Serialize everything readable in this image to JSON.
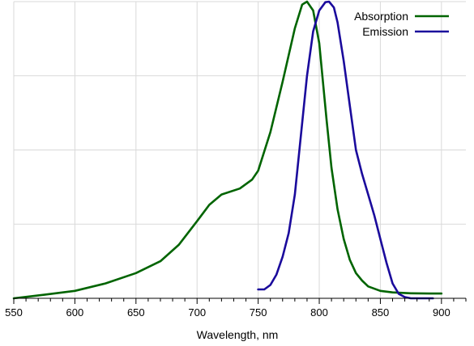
{
  "chart_data": {
    "type": "line",
    "title": "",
    "xlabel": "Wavelength, nm",
    "ylabel": "",
    "xlim": [
      550,
      920
    ],
    "ylim": [
      0,
      1
    ],
    "x_ticks": [
      "550",
      "600",
      "650",
      "700",
      "750",
      "800",
      "850",
      "900"
    ],
    "grid": true,
    "legend_position": "top-right",
    "series": [
      {
        "name": "Absorption",
        "color": "#006400",
        "x": [
          550,
          575,
          600,
          625,
          650,
          670,
          685,
          700,
          710,
          720,
          735,
          745,
          750,
          760,
          770,
          780,
          786,
          790,
          795,
          800,
          806,
          810,
          815,
          820,
          825,
          830,
          835,
          840,
          850,
          860,
          875,
          890,
          900
        ],
        "y": [
          0.0,
          0.012,
          0.025,
          0.05,
          0.085,
          0.125,
          0.18,
          0.26,
          0.315,
          0.35,
          0.37,
          0.4,
          0.43,
          0.56,
          0.73,
          0.91,
          0.99,
          1.0,
          0.97,
          0.86,
          0.6,
          0.44,
          0.3,
          0.2,
          0.13,
          0.085,
          0.06,
          0.04,
          0.025,
          0.02,
          0.017,
          0.016,
          0.016
        ]
      },
      {
        "name": "Emission",
        "color": "#1a0a9c",
        "x": [
          750,
          755,
          760,
          765,
          770,
          775,
          780,
          785,
          790,
          795,
          800,
          805,
          808,
          812,
          815,
          820,
          825,
          830,
          835,
          840,
          845,
          850,
          855,
          860,
          865,
          870,
          875,
          880,
          890,
          893
        ],
        "y": [
          0.03,
          0.03,
          0.045,
          0.08,
          0.14,
          0.22,
          0.35,
          0.55,
          0.75,
          0.9,
          0.97,
          0.998,
          1.0,
          0.98,
          0.93,
          0.8,
          0.65,
          0.5,
          0.42,
          0.35,
          0.28,
          0.2,
          0.12,
          0.05,
          0.015,
          0.004,
          0.0,
          0.0,
          0.0,
          0.0
        ]
      }
    ]
  }
}
